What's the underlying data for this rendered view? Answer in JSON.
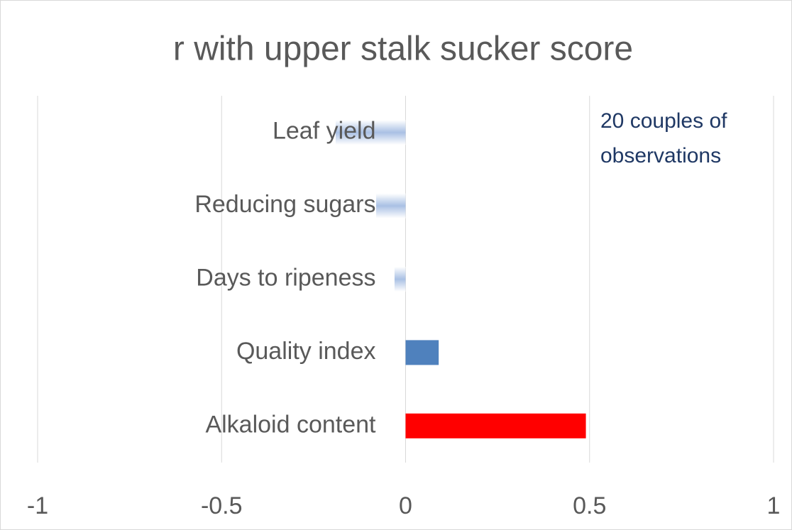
{
  "chart_data": {
    "type": "hbar",
    "title": "r with upper stalk sucker score",
    "categories": [
      "Leaf yield",
      "Reducing sugars",
      "Days to ripeness",
      "Quality index",
      "Alkaloid content"
    ],
    "values": [
      -0.19,
      -0.08,
      -0.03,
      0.09,
      0.49
    ],
    "colors": [
      "#a9c0e4",
      "#a9c0e4",
      "#a9c0e4",
      "#4f81bd",
      "#ff0000"
    ],
    "xlim": [
      -1,
      1
    ],
    "xticks": [
      -1,
      -0.5,
      0,
      0.5,
      1
    ],
    "grid": true,
    "annotation": [
      "20 couples of",
      "observations"
    ]
  }
}
